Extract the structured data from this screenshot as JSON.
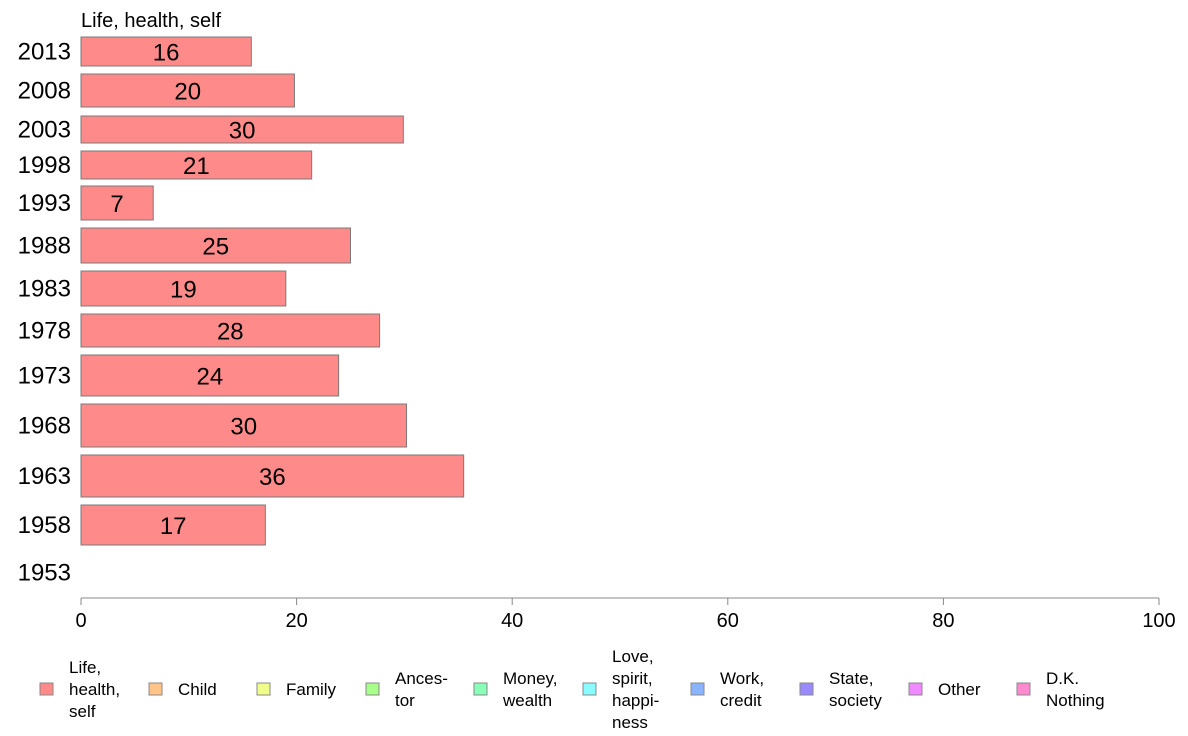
{
  "chart_data": {
    "type": "bar",
    "orientation": "horizontal",
    "title": "Life, health, self",
    "xlabel": "",
    "ylabel": "",
    "xlim": [
      0,
      100
    ],
    "x_ticks": [
      0,
      20,
      40,
      60,
      80,
      100
    ],
    "categories": [
      "2013",
      "2008",
      "2003",
      "1998",
      "1993",
      "1988",
      "1983",
      "1978",
      "1973",
      "1968",
      "1963",
      "1958",
      "1953"
    ],
    "series": [
      {
        "name": "Life, health, self",
        "color": "#ff8a8a",
        "values": [
          15.8,
          19.8,
          29.9,
          21.4,
          6.7,
          25.0,
          19.0,
          27.7,
          23.9,
          30.2,
          35.5,
          17.1,
          null
        ],
        "labels": [
          "16",
          "20",
          "30",
          "21",
          "7",
          "25",
          "19",
          "28",
          "24",
          "30",
          "36",
          "17",
          ""
        ]
      }
    ],
    "legend": {
      "placement": "bottom",
      "items": [
        {
          "lines": [
            "Life,",
            "health,",
            "self"
          ],
          "color": "#ff8a8a"
        },
        {
          "lines": [
            "Child"
          ],
          "color": "#ffc48a"
        },
        {
          "lines": [
            "Family"
          ],
          "color": "#f0ff8a"
        },
        {
          "lines": [
            "Ances-",
            "tor"
          ],
          "color": "#a8ff8a"
        },
        {
          "lines": [
            "Money,",
            "wealth"
          ],
          "color": "#8affb8"
        },
        {
          "lines": [
            "Love,",
            "spirit,",
            "happi-",
            "ness"
          ],
          "color": "#8afcff"
        },
        {
          "lines": [
            "Work,",
            "credit"
          ],
          "color": "#8ab4ff"
        },
        {
          "lines": [
            "State,",
            "society"
          ],
          "color": "#9a8aff"
        },
        {
          "lines": [
            "Other"
          ],
          "color": "#f08aff"
        },
        {
          "lines": [
            "D.K.",
            "Nothing"
          ],
          "color": "#ff8ad0"
        }
      ]
    },
    "grid": false
  }
}
